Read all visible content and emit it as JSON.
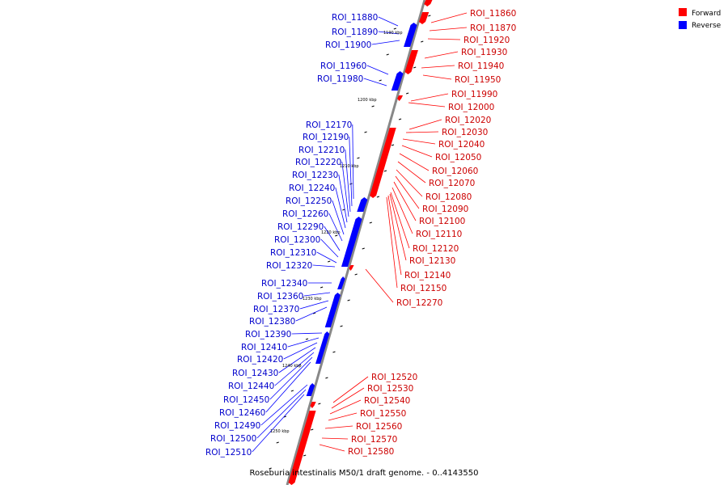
{
  "caption": "Roseburia intestinalis M50/1 draft genome. - 0..4143550",
  "legend": [
    {
      "label": "Forward",
      "color": "#ff0000"
    },
    {
      "label": "Reverse",
      "color": "#0000ff"
    }
  ],
  "colors": {
    "forward": "#ff0000",
    "reverse": "#0000ff",
    "backbone": "#888888"
  },
  "ticks": [
    "1190 kbp",
    "1200 kbp",
    "1210 kbp",
    "1220 kbp",
    "1230 kbp",
    "1240 kbp",
    "1250 kbp"
  ],
  "forward_labels": [
    "ROI_11860",
    "ROI_11870",
    "ROI_11920",
    "ROI_11930",
    "ROI_11940",
    "ROI_11950",
    "ROI_11990",
    "ROI_12000",
    "ROI_12020",
    "ROI_12030",
    "ROI_12040",
    "ROI_12050",
    "ROI_12060",
    "ROI_12070",
    "ROI_12080",
    "ROI_12090",
    "ROI_12100",
    "ROI_12110",
    "ROI_12120",
    "ROI_12130",
    "ROI_12140",
    "ROI_12150",
    "ROI_12270",
    "ROI_12520",
    "ROI_12530",
    "ROI_12540",
    "ROI_12550",
    "ROI_12560",
    "ROI_12570",
    "ROI_12580"
  ],
  "reverse_labels": [
    "ROI_11880",
    "ROI_11890",
    "ROI_11900",
    "ROI_11960",
    "ROI_11980",
    "ROI_12170",
    "ROI_12190",
    "ROI_12210",
    "ROI_12220",
    "ROI_12230",
    "ROI_12240",
    "ROI_12250",
    "ROI_12260",
    "ROI_12290",
    "ROI_12300",
    "ROI_12310",
    "ROI_12320",
    "ROI_12340",
    "ROI_12360",
    "ROI_12370",
    "ROI_12380",
    "ROI_12390",
    "ROI_12410",
    "ROI_12420",
    "ROI_12430",
    "ROI_12440",
    "ROI_12450",
    "ROI_12460",
    "ROI_12490",
    "ROI_12500",
    "ROI_12510"
  ]
}
